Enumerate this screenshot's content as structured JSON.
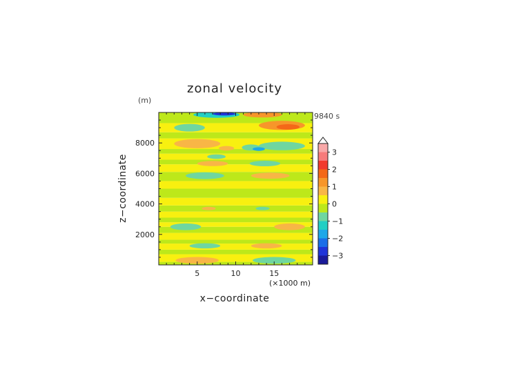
{
  "chart_data": {
    "type": "heatmap",
    "title": "zonal velocity",
    "xlabel": "x−coordinate",
    "ylabel": "z−coordinate",
    "x_unit": "(×1000 m)",
    "y_unit": "(m)",
    "time_label": "9840 s",
    "xlim": [
      0,
      20
    ],
    "ylim": [
      0,
      10000
    ],
    "x_ticks": [
      5,
      10,
      15
    ],
    "y_ticks": [
      2000,
      4000,
      6000,
      8000
    ],
    "colorbar": {
      "tick_values": [
        3,
        2,
        1,
        0,
        -1,
        -2,
        -3
      ],
      "tick_labels": [
        "3",
        "2",
        "1",
        "0",
        "−1",
        "−2",
        "−3"
      ],
      "levels": [
        {
          "from": 3.0,
          "to": 3.5,
          "color": "#f8a8a8"
        },
        {
          "from": 2.5,
          "to": 3.0,
          "color": "#f77b7b"
        },
        {
          "from": 2.0,
          "to": 2.5,
          "color": "#f23a2e"
        },
        {
          "from": 1.5,
          "to": 2.0,
          "color": "#f46818"
        },
        {
          "from": 1.0,
          "to": 1.5,
          "color": "#f7962a"
        },
        {
          "from": 0.5,
          "to": 1.0,
          "color": "#f8b646"
        },
        {
          "from": 0.0,
          "to": 0.5,
          "color": "#f8f010"
        },
        {
          "from": -0.5,
          "to": 0.0,
          "color": "#bde81a"
        },
        {
          "from": -1.0,
          "to": -0.5,
          "color": "#6fd6a0"
        },
        {
          "from": -1.5,
          "to": -1.0,
          "color": "#22cfc4"
        },
        {
          "from": -2.0,
          "to": -1.5,
          "color": "#1ea7e8"
        },
        {
          "from": -2.5,
          "to": -2.0,
          "color": "#1a6ee8"
        },
        {
          "from": -3.0,
          "to": -2.5,
          "color": "#1f34d8"
        },
        {
          "from": -3.5,
          "to": -3.0,
          "color": "#1a1a99"
        }
      ]
    },
    "bands": [
      {
        "z_min": 0,
        "z_max": 200,
        "value": -0.25
      },
      {
        "z_min": 200,
        "z_max": 700,
        "value": 0.25
      },
      {
        "z_min": 700,
        "z_max": 1000,
        "value": -0.25
      },
      {
        "z_min": 1000,
        "z_max": 1400,
        "value": 0.25
      },
      {
        "z_min": 1400,
        "z_max": 1650,
        "value": -0.25
      },
      {
        "z_min": 1650,
        "z_max": 2100,
        "value": 0.25
      },
      {
        "z_min": 2100,
        "z_max": 2500,
        "value": -0.25
      },
      {
        "z_min": 2500,
        "z_max": 2800,
        "value": 0.25
      },
      {
        "z_min": 2800,
        "z_max": 3100,
        "value": -0.25
      },
      {
        "z_min": 3100,
        "z_max": 3500,
        "value": 0.25
      },
      {
        "z_min": 3500,
        "z_max": 3900,
        "value": -0.25
      },
      {
        "z_min": 3900,
        "z_max": 4400,
        "value": 0.25
      },
      {
        "z_min": 4400,
        "z_max": 5000,
        "value": -0.25
      },
      {
        "z_min": 5000,
        "z_max": 5500,
        "value": 0.25
      },
      {
        "z_min": 5500,
        "z_max": 6100,
        "value": -0.25
      },
      {
        "z_min": 6100,
        "z_max": 6600,
        "value": 0.25
      },
      {
        "z_min": 6600,
        "z_max": 6900,
        "value": -0.25
      },
      {
        "z_min": 6900,
        "z_max": 7300,
        "value": 0.25
      },
      {
        "z_min": 7300,
        "z_max": 7600,
        "value": -0.25
      },
      {
        "z_min": 7600,
        "z_max": 8300,
        "value": 0.25
      },
      {
        "z_min": 8300,
        "z_max": 8700,
        "value": -0.25
      },
      {
        "z_min": 8700,
        "z_max": 9300,
        "value": 0.25
      },
      {
        "z_min": 9300,
        "z_max": 10000,
        "value": -0.25
      }
    ],
    "blobs": [
      {
        "x": 4.0,
        "z": 9000,
        "rx": 2.0,
        "rz": 250,
        "value": -1.0
      },
      {
        "x": 7.5,
        "z": 9850,
        "rx": 3.0,
        "rz": 200,
        "value": -1.25
      },
      {
        "x": 8.5,
        "z": 9900,
        "rx": 1.5,
        "rz": 100,
        "value": -2.75
      },
      {
        "x": 13.5,
        "z": 9850,
        "rx": 2.5,
        "rz": 180,
        "value": 1.25
      },
      {
        "x": 16.0,
        "z": 9150,
        "rx": 3.0,
        "rz": 300,
        "value": 1.25
      },
      {
        "x": 16.8,
        "z": 9050,
        "rx": 1.5,
        "rz": 180,
        "value": 1.75
      },
      {
        "x": 5.0,
        "z": 7950,
        "rx": 3.0,
        "rz": 300,
        "value": 0.75
      },
      {
        "x": 8.8,
        "z": 7650,
        "rx": 1.0,
        "rz": 150,
        "value": 0.75
      },
      {
        "x": 16.0,
        "z": 7800,
        "rx": 3.0,
        "rz": 280,
        "value": -1.0
      },
      {
        "x": 12.0,
        "z": 7700,
        "rx": 1.2,
        "rz": 200,
        "value": -0.75
      },
      {
        "x": 13.0,
        "z": 7600,
        "rx": 0.8,
        "rz": 120,
        "value": -1.75
      },
      {
        "x": 7.5,
        "z": 7100,
        "rx": 1.2,
        "rz": 150,
        "value": -0.75
      },
      {
        "x": 7.0,
        "z": 6650,
        "rx": 2.0,
        "rz": 170,
        "value": 0.75
      },
      {
        "x": 13.8,
        "z": 6650,
        "rx": 2.0,
        "rz": 180,
        "value": -0.75
      },
      {
        "x": 6.0,
        "z": 5850,
        "rx": 2.5,
        "rz": 220,
        "value": -0.75
      },
      {
        "x": 14.5,
        "z": 5850,
        "rx": 2.5,
        "rz": 200,
        "value": 0.75
      },
      {
        "x": 6.5,
        "z": 3700,
        "rx": 0.9,
        "rz": 110,
        "value": 0.75
      },
      {
        "x": 13.5,
        "z": 3700,
        "rx": 0.9,
        "rz": 110,
        "value": -0.75
      },
      {
        "x": 3.5,
        "z": 2500,
        "rx": 2.0,
        "rz": 220,
        "value": -0.75
      },
      {
        "x": 17.0,
        "z": 2500,
        "rx": 2.0,
        "rz": 220,
        "value": 0.75
      },
      {
        "x": 6.0,
        "z": 1250,
        "rx": 2.0,
        "rz": 170,
        "value": -0.75
      },
      {
        "x": 14.0,
        "z": 1250,
        "rx": 2.0,
        "rz": 170,
        "value": 0.75
      },
      {
        "x": 5.0,
        "z": 300,
        "rx": 2.8,
        "rz": 220,
        "value": 0.75
      },
      {
        "x": 15.0,
        "z": 300,
        "rx": 2.8,
        "rz": 220,
        "value": -0.75
      }
    ]
  }
}
